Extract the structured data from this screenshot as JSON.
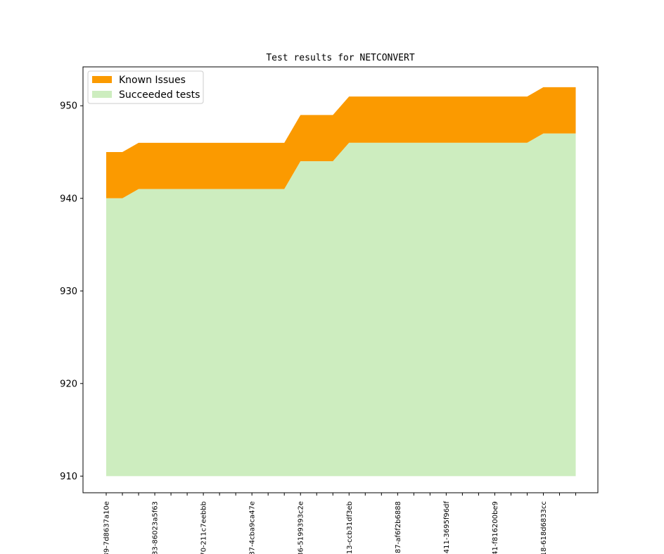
{
  "chart_data": {
    "type": "area",
    "title": "Test results for NETCONVERT",
    "xlabel": "",
    "ylabel": "",
    "ylim": [
      908.2,
      954.2
    ],
    "yticks": [
      910,
      920,
      930,
      940,
      950
    ],
    "grid": false,
    "legend_position": "top-left",
    "x_tick_labels": [
      "…39-7d8637a10e",
      "…33-86023a5f63",
      "…70-211c7eebbb",
      "…87-4cba9ca47e",
      "…36-5199393c2e",
      "…13-ccb31df3eb",
      "…87-af6f2b6888",
      "…411-3695f96df",
      "…41-f816200be9",
      "…18-618d6833cc"
    ],
    "baseline": 910,
    "series": [
      {
        "name": "Succeeded tests",
        "color": "#cdedbf",
        "values": [
          940,
          940,
          941,
          941,
          941,
          941,
          941,
          941,
          941,
          941,
          941,
          941,
          944,
          944,
          944,
          946,
          946,
          946,
          946,
          946,
          946,
          946,
          946,
          946,
          946,
          946,
          946,
          947,
          947,
          947
        ]
      },
      {
        "name": "Known Issues",
        "color": "#fb9a00",
        "values": [
          5,
          5,
          5,
          5,
          5,
          5,
          5,
          5,
          5,
          5,
          5,
          5,
          5,
          5,
          5,
          5,
          5,
          5,
          5,
          5,
          5,
          5,
          5,
          5,
          5,
          5,
          5,
          5,
          5,
          5
        ]
      }
    ]
  }
}
